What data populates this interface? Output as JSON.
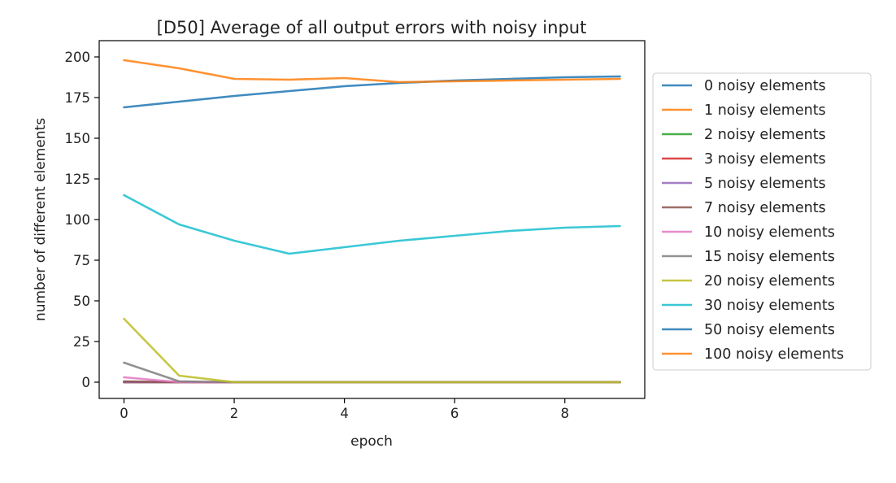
{
  "chart_data": {
    "type": "line",
    "title": "[D50] Average of all output errors with noisy input",
    "xlabel": "epoch",
    "ylabel": "number of different elements",
    "x": [
      0,
      1,
      2,
      3,
      4,
      5,
      6,
      7,
      8,
      9
    ],
    "xlim": [
      -0.45,
      9.45
    ],
    "ylim": [
      -10,
      210
    ],
    "xticks": [
      0,
      2,
      4,
      6,
      8
    ],
    "yticks": [
      0,
      25,
      50,
      75,
      100,
      125,
      150,
      175,
      200
    ],
    "legend_position": "center-left outside plot (right side)",
    "grid": false,
    "series": [
      {
        "name": "0 noisy elements",
        "color": "#1f77b4",
        "values": [
          0,
          0,
          0,
          0,
          0,
          0,
          0,
          0,
          0,
          0
        ]
      },
      {
        "name": "1 noisy elements",
        "color": "#ff7f0e",
        "values": [
          0,
          0,
          0,
          0,
          0,
          0,
          0,
          0,
          0,
          0
        ]
      },
      {
        "name": "2 noisy elements",
        "color": "#2ca02c",
        "values": [
          0,
          0,
          0,
          0,
          0,
          0,
          0,
          0,
          0,
          0
        ]
      },
      {
        "name": "3 noisy elements",
        "color": "#d62728",
        "values": [
          0,
          0,
          0,
          0,
          0,
          0,
          0,
          0,
          0,
          0
        ]
      },
      {
        "name": "5 noisy elements",
        "color": "#9467bd",
        "values": [
          0,
          0,
          0,
          0,
          0,
          0,
          0,
          0,
          0,
          0
        ]
      },
      {
        "name": "7 noisy elements",
        "color": "#8c564b",
        "values": [
          0.5,
          0,
          0,
          0,
          0,
          0,
          0,
          0,
          0,
          0
        ]
      },
      {
        "name": "10 noisy elements",
        "color": "#e377c2",
        "values": [
          3,
          0,
          0,
          0,
          0,
          0,
          0,
          0,
          0,
          0
        ]
      },
      {
        "name": "15 noisy elements",
        "color": "#7f7f7f",
        "values": [
          12,
          0.5,
          0,
          0,
          0,
          0,
          0,
          0,
          0,
          0
        ]
      },
      {
        "name": "20 noisy elements",
        "color": "#bcbd22",
        "values": [
          39,
          4,
          0,
          0,
          0,
          0,
          0,
          0,
          0,
          0
        ]
      },
      {
        "name": "30 noisy elements",
        "color": "#17becf",
        "values": [
          115,
          97,
          87,
          79,
          83,
          87,
          90,
          93,
          95,
          96
        ]
      },
      {
        "name": "50 noisy elements",
        "color": "#1f77b4",
        "values": [
          169,
          172.5,
          176,
          179,
          182,
          184,
          185.5,
          186.5,
          187.5,
          188
        ]
      },
      {
        "name": "100 noisy elements",
        "color": "#ff7f0e",
        "values": [
          198,
          193,
          186.5,
          186,
          187,
          184.5,
          185,
          185.5,
          186,
          186.5
        ]
      }
    ]
  }
}
